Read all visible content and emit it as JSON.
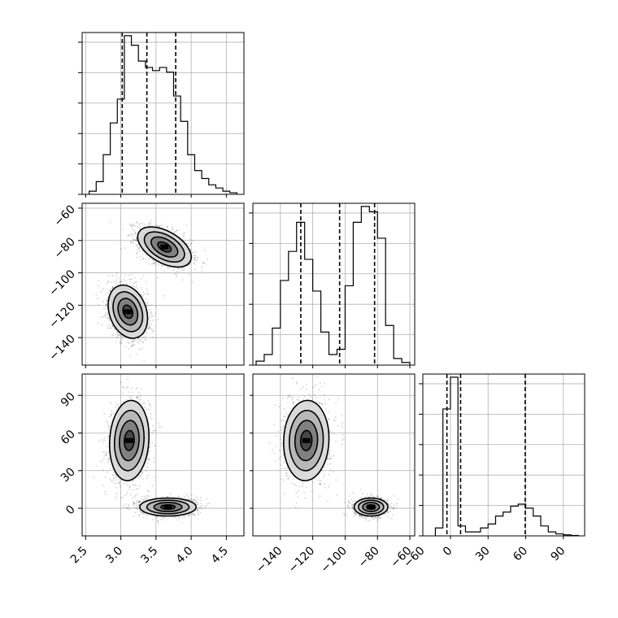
{
  "chart_data": {
    "type": "corner",
    "grid": true,
    "parameters": [
      {
        "id": "p0",
        "range": [
          2.45,
          4.75
        ],
        "ticks": [
          2.5,
          3.0,
          3.5,
          4.0,
          4.5
        ],
        "tick_labels": [
          "2.5",
          "3.0",
          "3.5",
          "4.0",
          "4.5"
        ]
      },
      {
        "id": "p1",
        "range": [
          -157,
          -57
        ],
        "ticks": [
          -140,
          -120,
          -100,
          -80,
          -60
        ],
        "tick_labels": [
          "−140",
          "−120",
          "−100",
          "−80",
          "−60"
        ]
      },
      {
        "id": "p2",
        "range": [
          -22,
          107
        ],
        "ticks": [
          -60,
          0,
          30,
          60,
          90
        ],
        "x_tick_labels": [
          "−60",
          "0",
          "30",
          "60",
          "90"
        ],
        "y_tick_labels": [
          "0",
          "30",
          "60",
          "90"
        ]
      }
    ],
    "histograms": [
      {
        "param": "p0",
        "bin_edges": [
          2.55,
          2.65,
          2.75,
          2.85,
          2.95,
          3.05,
          3.15,
          3.25,
          3.35,
          3.45,
          3.55,
          3.65,
          3.75,
          3.85,
          3.95,
          4.05,
          4.15,
          4.25,
          4.35,
          4.45,
          4.55,
          4.65
        ],
        "counts": [
          2,
          8,
          25,
          45,
          60,
          100,
          94,
          84,
          80,
          78,
          80,
          77,
          62,
          46,
          25,
          15,
          10,
          6,
          4,
          2,
          1
        ],
        "quantiles": [
          3.02,
          3.37,
          3.78
        ]
      },
      {
        "param": "p1",
        "bin_edges": [
          -155,
          -150,
          -145,
          -140,
          -135,
          -130,
          -125,
          -120,
          -115,
          -110,
          -105,
          -100,
          -95,
          -90,
          -85,
          -80,
          -75,
          -70,
          -65,
          -60
        ],
        "counts": [
          3,
          8,
          28,
          64,
          86,
          108,
          80,
          56,
          25,
          8,
          12,
          60,
          108,
          120,
          116,
          96,
          30,
          5,
          2
        ],
        "quantiles": [
          -127.4,
          -103.4,
          -81.8
        ]
      },
      {
        "param": "p2",
        "bin_edges": [
          -12,
          -6,
          0,
          6,
          12,
          18,
          24,
          30,
          36,
          42,
          48,
          54,
          60,
          66,
          72,
          78,
          84,
          90,
          96,
          102
        ],
        "counts": [
          4,
          64,
          80,
          5,
          2,
          2,
          4,
          6,
          10,
          12,
          15,
          16,
          14,
          10,
          5,
          2,
          1,
          0.5,
          0.2
        ],
        "quantiles": [
          -2.8,
          8.1,
          59.6
        ]
      }
    ],
    "pairs": [
      {
        "x": "p0",
        "y": "p1",
        "clusters": [
          {
            "center": [
              3.62,
              -84
            ],
            "sd": [
              0.19,
              6.2
            ],
            "rho": -0.5,
            "count": 1600
          },
          {
            "center": [
              3.1,
              -124
            ],
            "sd": [
              0.14,
              8.2
            ],
            "rho": -0.25,
            "count": 1600
          }
        ]
      },
      {
        "x": "p0",
        "y": "p2",
        "clusters": [
          {
            "center": [
              3.12,
              54
            ],
            "sd": [
              0.14,
              16
            ],
            "rho": 0.1,
            "count": 1400
          },
          {
            "center": [
              3.67,
              1
            ],
            "sd": [
              0.2,
              3.6
            ],
            "rho": 0.0,
            "count": 1400
          }
        ]
      },
      {
        "x": "p1",
        "y": "p2",
        "clusters": [
          {
            "center": [
              -124,
              54
            ],
            "sd": [
              7,
              16
            ],
            "rho": 0.05,
            "count": 1400
          },
          {
            "center": [
              -84,
              1
            ],
            "sd": [
              5.2,
              3.6
            ],
            "rho": 0.0,
            "count": 1400
          }
        ]
      }
    ],
    "contour_levels_sigma": [
      0.5,
      1.0,
      1.5,
      2.0
    ]
  }
}
